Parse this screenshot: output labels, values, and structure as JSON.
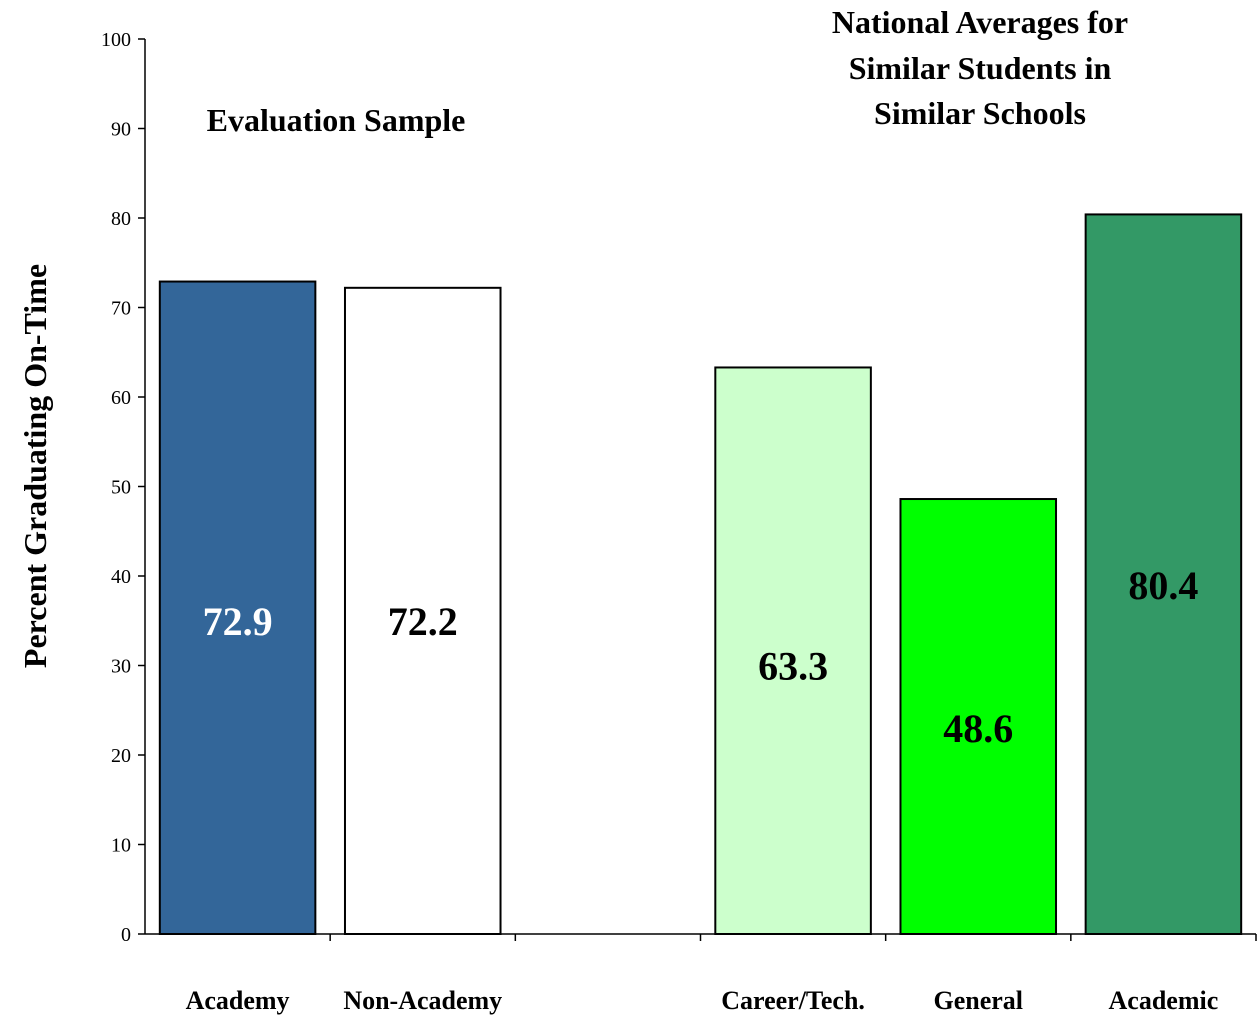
{
  "chart_data": {
    "type": "bar",
    "categories": [
      "Academy",
      "Non-Academy",
      "",
      "Career/Tech.",
      "General",
      "Academic"
    ],
    "values": [
      72.9,
      72.2,
      null,
      63.3,
      48.6,
      80.4
    ],
    "value_labels": [
      "72.9",
      "72.2",
      "",
      "63.3",
      "48.6",
      "80.4"
    ],
    "bar_colors": [
      "#336699",
      "#ffffff",
      null,
      "#ccffcc",
      "#00ff00",
      "#339966"
    ],
    "value_label_colors": [
      "#ffffff",
      "#000000",
      null,
      "#000000",
      "#000000",
      "#000000"
    ],
    "ylabel": "Percent Graduating On-Time",
    "xlabel": "",
    "ylim": [
      0,
      100
    ],
    "yticks": [
      0,
      10,
      20,
      30,
      40,
      50,
      60,
      70,
      80,
      90,
      100
    ],
    "group_titles": {
      "evaluation": [
        "Evaluation Sample"
      ],
      "national": [
        "National Averages for",
        "Similar Students in",
        "Similar Schools"
      ]
    },
    "grid": false,
    "legend": "none"
  }
}
